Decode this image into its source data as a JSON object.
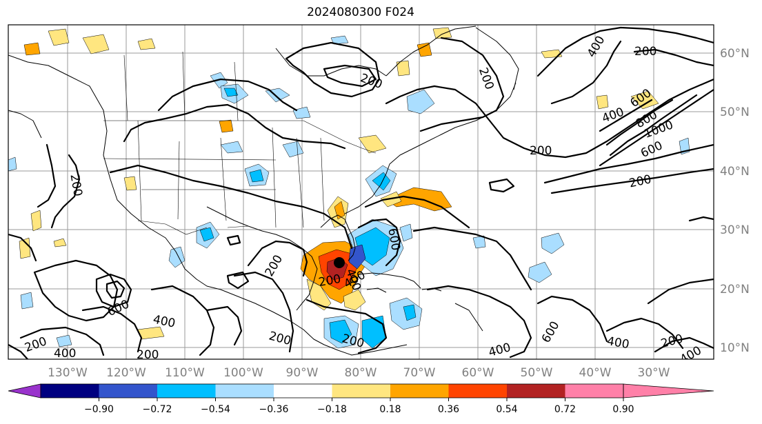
{
  "title": "2024080300 F024",
  "lon_labels": [
    "130°W",
    "120°W",
    "110°W",
    "100°W",
    "90°W",
    "80°W",
    "70°W",
    "60°W",
    "50°W",
    "40°W",
    "30°W"
  ],
  "lat_labels": [
    "60°N",
    "50°N",
    "40°N",
    "30°N",
    "20°N",
    "10°N"
  ],
  "colorbar": {
    "ticks": [
      "−0.90",
      "−0.72",
      "−0.54",
      "−0.36",
      "−0.18",
      "0.18",
      "0.36",
      "0.54",
      "0.72",
      "0.90"
    ],
    "colors": [
      "#9933cc",
      "#000080",
      "#3355cc",
      "#00bfff",
      "#aadeff",
      "#ffffff",
      "#ffe680",
      "#ffa500",
      "#ff4400",
      "#b22222",
      "#ff80a8"
    ]
  },
  "contour_labels": [
    "200",
    "200",
    "200",
    "400",
    "400",
    "600",
    "1000",
    "800",
    "600",
    "200",
    "200",
    "600",
    "400",
    "200",
    "400",
    "600",
    "400",
    "200",
    "200",
    "400",
    "600",
    "400",
    "200",
    "400",
    "200",
    "200",
    "200",
    "400",
    "200"
  ]
}
